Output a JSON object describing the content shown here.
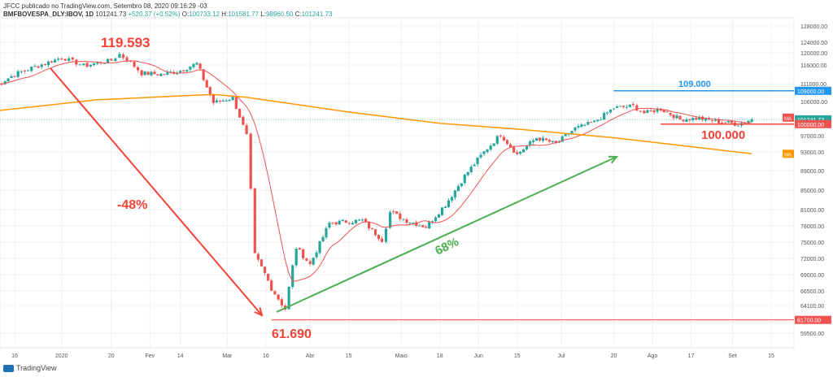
{
  "header": {
    "publisher_line": "JFCC publicado no TradingView.com, Setembro 08, 2020 09:16:29 -03",
    "symbol": "BMFBOVESPA_DLY:IBOV, 1D",
    "last": "101241.73",
    "change": "+520.37 (+0.52%)",
    "ohlc_labels": [
      "O:",
      "H:",
      "L:",
      "C:"
    ],
    "ohlc_values": [
      "100733.12",
      "101581.77",
      "98960.50",
      "101241.73"
    ]
  },
  "footer": {
    "brand": "TradingView"
  },
  "colors": {
    "up": "#26a69a",
    "down": "#ef5350",
    "ma_short": "#ef5350",
    "ma_long": "#ff9800",
    "annot_red": "#f44336",
    "annot_green": "#4caf50",
    "annot_blue": "#2196f3",
    "grid": "#eef0f3"
  },
  "chart_data": {
    "type": "candlestick",
    "y_ticks": [
      128000,
      124000,
      120000,
      116000,
      111000,
      106000,
      101000,
      97000,
      93000,
      89000,
      85000,
      81000,
      78000,
      75000,
      72000,
      69000,
      66500,
      64100,
      59500
    ],
    "x_ticks": [
      "16",
      "2020",
      "20",
      "Fev",
      "14",
      "Mar",
      "16",
      "Abr",
      "15",
      "Maio",
      "18",
      "Jun",
      "15",
      "Jul",
      "20",
      "Ago",
      "17",
      "Set",
      "15"
    ],
    "price_labels": [
      {
        "value": 109000,
        "text": "109000.00",
        "color": "#2196f3"
      },
      {
        "value": 101241.73,
        "text": "101241.73",
        "color": "#26a69a"
      },
      {
        "value": 100000,
        "text": "100000.00",
        "color": "#ef5350"
      },
      {
        "value": 61700,
        "text": "61700.00",
        "color": "#ef5350"
      }
    ],
    "ma_tags": [
      {
        "value": 101700,
        "text": "MA",
        "color": "#ef5350"
      },
      {
        "value": 92600,
        "text": "MA",
        "color": "#ff9800"
      }
    ],
    "annotations": [
      {
        "text": "119.593",
        "color": "#f44336"
      },
      {
        "text": "-48%",
        "color": "#f44336"
      },
      {
        "text": "61.690",
        "color": "#f44336"
      },
      {
        "text": "68%",
        "color": "#4caf50"
      },
      {
        "text": "109.000",
        "color": "#2196f3"
      },
      {
        "text": "100.000",
        "color": "#f44336"
      }
    ],
    "horizontal_levels": [
      109000,
      100000,
      61700
    ],
    "series": [
      {
        "name": "IBOV",
        "close_path": [
          [
            "2019-12-09",
            110500
          ],
          [
            "2019-12-16",
            113500
          ],
          [
            "2019-12-27",
            116500
          ],
          [
            "2020-01-02",
            118500
          ],
          [
            "2020-01-10",
            115800
          ],
          [
            "2020-01-20",
            117500
          ],
          [
            "2020-01-23",
            119593
          ],
          [
            "2020-01-31",
            113800
          ],
          [
            "2020-02-07",
            113500
          ],
          [
            "2020-02-14",
            114500
          ],
          [
            "2020-02-20",
            116500
          ],
          [
            "2020-02-26",
            105700
          ],
          [
            "2020-03-04",
            107000
          ],
          [
            "2020-03-09",
            97000
          ],
          [
            "2020-03-12",
            72600
          ],
          [
            "2020-03-18",
            66900
          ],
          [
            "2020-03-23",
            63500
          ],
          [
            "2020-03-27",
            74000
          ],
          [
            "2020-04-01",
            70900
          ],
          [
            "2020-04-08",
            78500
          ],
          [
            "2020-04-14",
            78800
          ],
          [
            "2020-04-20",
            79000
          ],
          [
            "2020-04-27",
            75400
          ],
          [
            "2020-04-30",
            80500
          ],
          [
            "2020-05-06",
            79000
          ],
          [
            "2020-05-13",
            77800
          ],
          [
            "2020-05-20",
            82000
          ],
          [
            "2020-05-27",
            87900
          ],
          [
            "2020-06-03",
            93000
          ],
          [
            "2020-06-09",
            97300
          ],
          [
            "2020-06-15",
            92400
          ],
          [
            "2020-06-22",
            96500
          ],
          [
            "2020-06-29",
            95000
          ],
          [
            "2020-07-06",
            98900
          ],
          [
            "2020-07-13",
            100500
          ],
          [
            "2020-07-20",
            104300
          ],
          [
            "2020-07-27",
            104800
          ],
          [
            "2020-07-31",
            102900
          ],
          [
            "2020-08-06",
            104000
          ],
          [
            "2020-08-13",
            101300
          ],
          [
            "2020-08-20",
            101500
          ],
          [
            "2020-08-27",
            100600
          ],
          [
            "2020-09-03",
            100000
          ],
          [
            "2020-09-08",
            101241.73
          ]
        ]
      }
    ]
  }
}
